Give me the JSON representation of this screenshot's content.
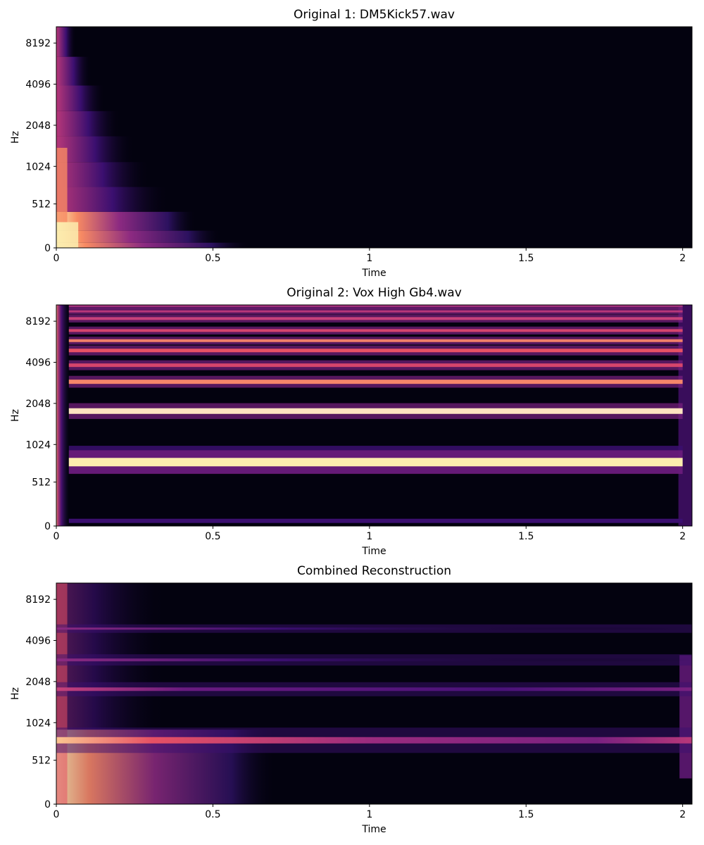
{
  "chart_data": [
    {
      "type": "heatmap",
      "title": "Original 1: DM5Kick57.wav",
      "xlabel": "Time",
      "ylabel": "Hz",
      "y_scale": "log",
      "xlim": [
        0,
        2.03
      ],
      "x_ticks": [
        0,
        0.5,
        1,
        1.5,
        2
      ],
      "x_tick_labels": [
        "0",
        "0.5",
        "1",
        "1.5",
        "2"
      ],
      "y_ticks": [
        0,
        512,
        1024,
        2048,
        4096,
        8192
      ],
      "y_tick_labels": [
        "0",
        "512",
        "1024",
        "2048",
        "4096",
        "8192"
      ],
      "colormap": "magma",
      "description_of_energy": "broadband transient decaying to silence by ~0.62 s",
      "decay_end_time": 0.62
    },
    {
      "type": "heatmap",
      "title": "Original 2: Vox High Gb4.wav",
      "xlabel": "Time",
      "ylabel": "Hz",
      "y_scale": "log",
      "xlim": [
        0,
        2.03
      ],
      "x_ticks": [
        0,
        0.5,
        1,
        1.5,
        2
      ],
      "x_tick_labels": [
        "0",
        "0.5",
        "1",
        "1.5",
        "2"
      ],
      "y_ticks": [
        0,
        512,
        1024,
        2048,
        4096,
        8192
      ],
      "y_tick_labels": [
        "0",
        "512",
        "1024",
        "2048",
        "4096",
        "8192"
      ],
      "colormap": "magma",
      "harmonic_bands_hz": [
        740,
        1800,
        2950,
        3900,
        5000,
        5900,
        7000,
        8600,
        9800,
        10800
      ],
      "onset_time": 0.04,
      "offset_time": 2.0
    },
    {
      "type": "heatmap",
      "title": "Combined Reconstruction",
      "xlabel": "Time",
      "ylabel": "Hz",
      "y_scale": "log",
      "xlim": [
        0,
        2.03
      ],
      "x_ticks": [
        0,
        0.5,
        1,
        1.5,
        2
      ],
      "x_tick_labels": [
        "0",
        "0.5",
        "1",
        "1.5",
        "2"
      ],
      "y_ticks": [
        0,
        512,
        1024,
        2048,
        4096,
        8192
      ],
      "y_tick_labels": [
        "0",
        "512",
        "1024",
        "2048",
        "4096",
        "8192"
      ],
      "colormap": "magma",
      "harmonic_bands_hz": [
        740,
        1800,
        2950,
        5000
      ]
    }
  ],
  "colors": {
    "background_dark": "#03020f",
    "axis": "#000000",
    "page": "#ffffff"
  }
}
